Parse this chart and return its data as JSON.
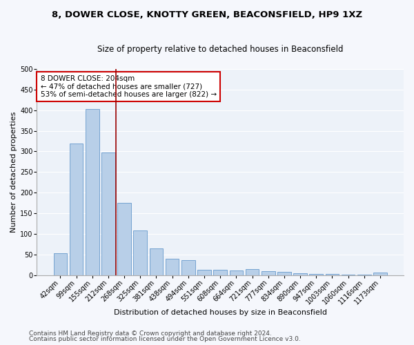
{
  "title_line1": "8, DOWER CLOSE, KNOTTY GREEN, BEACONSFIELD, HP9 1XZ",
  "title_line2": "Size of property relative to detached houses in Beaconsfield",
  "xlabel": "Distribution of detached houses by size in Beaconsfield",
  "ylabel": "Number of detached properties",
  "categories": [
    "42sqm",
    "99sqm",
    "155sqm",
    "212sqm",
    "268sqm",
    "325sqm",
    "381sqm",
    "438sqm",
    "494sqm",
    "551sqm",
    "608sqm",
    "664sqm",
    "721sqm",
    "777sqm",
    "834sqm",
    "890sqm",
    "947sqm",
    "1003sqm",
    "1060sqm",
    "1116sqm",
    "1173sqm"
  ],
  "values": [
    53,
    320,
    403,
    297,
    176,
    108,
    65,
    40,
    37,
    12,
    12,
    11,
    15,
    10,
    8,
    5,
    3,
    2,
    1,
    1,
    6
  ],
  "bar_color": "#b8cfe8",
  "bar_edge_color": "#6699cc",
  "vline_color": "#990000",
  "annotation_text": "8 DOWER CLOSE: 204sqm\n← 47% of detached houses are smaller (727)\n53% of semi-detached houses are larger (822) →",
  "annotation_box_color": "#ffffff",
  "annotation_box_edge_color": "#cc0000",
  "ylim": [
    0,
    500
  ],
  "yticks": [
    0,
    50,
    100,
    150,
    200,
    250,
    300,
    350,
    400,
    450,
    500
  ],
  "footer_line1": "Contains HM Land Registry data © Crown copyright and database right 2024.",
  "footer_line2": "Contains public sector information licensed under the Open Government Licence v3.0.",
  "background_color": "#edf2f9",
  "grid_color": "#ffffff",
  "title1_fontsize": 9.5,
  "title2_fontsize": 8.5,
  "xlabel_fontsize": 8,
  "ylabel_fontsize": 8,
  "tick_fontsize": 7,
  "annotation_fontsize": 7.5,
  "footer_fontsize": 6.5
}
